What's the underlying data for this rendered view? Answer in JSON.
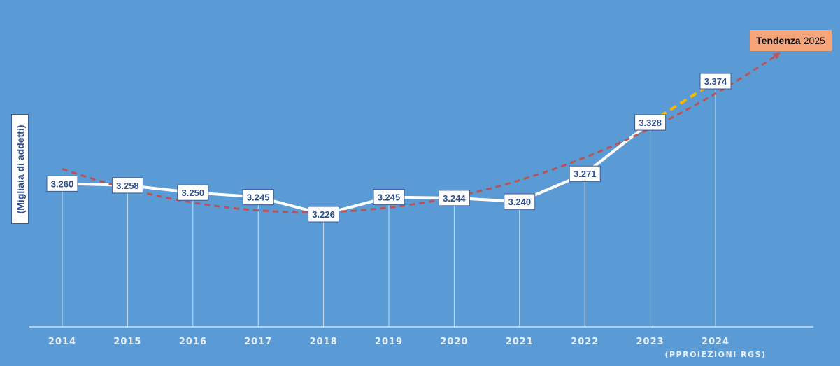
{
  "chart_data": {
    "type": "line",
    "ylabel": "(Migliaia di addetti)",
    "categories": [
      "2014",
      "2015",
      "2016",
      "2017",
      "2018",
      "2019",
      "2020",
      "2021",
      "2022",
      "2023",
      "2024"
    ],
    "category_sublabels": {
      "2024": "(PPROIEZIONI RGS)"
    },
    "series": [
      {
        "values": [
          3260,
          3258,
          3250,
          3245,
          3226,
          3245,
          3244,
          3240,
          3271,
          3328,
          3374
        ]
      }
    ],
    "data_labels": [
      "3.260",
      "3.258",
      "3.250",
      "3.245",
      "3.226",
      "3.245",
      "3.244",
      "3.240",
      "3.271",
      "3.328",
      "3.374"
    ],
    "projected_segment": {
      "from": "2023",
      "to": "2024",
      "color": "#f5b800"
    },
    "trend": {
      "label_bold": "Tendenza",
      "label_year": "2025",
      "color": "#c0504d",
      "style": "dashed-curve"
    },
    "colors": {
      "background": "#5b9bd5",
      "line": "#ffffff",
      "label_text": "#2f4f8f"
    },
    "grid": false,
    "ylim": [
      3160,
      3400
    ]
  }
}
